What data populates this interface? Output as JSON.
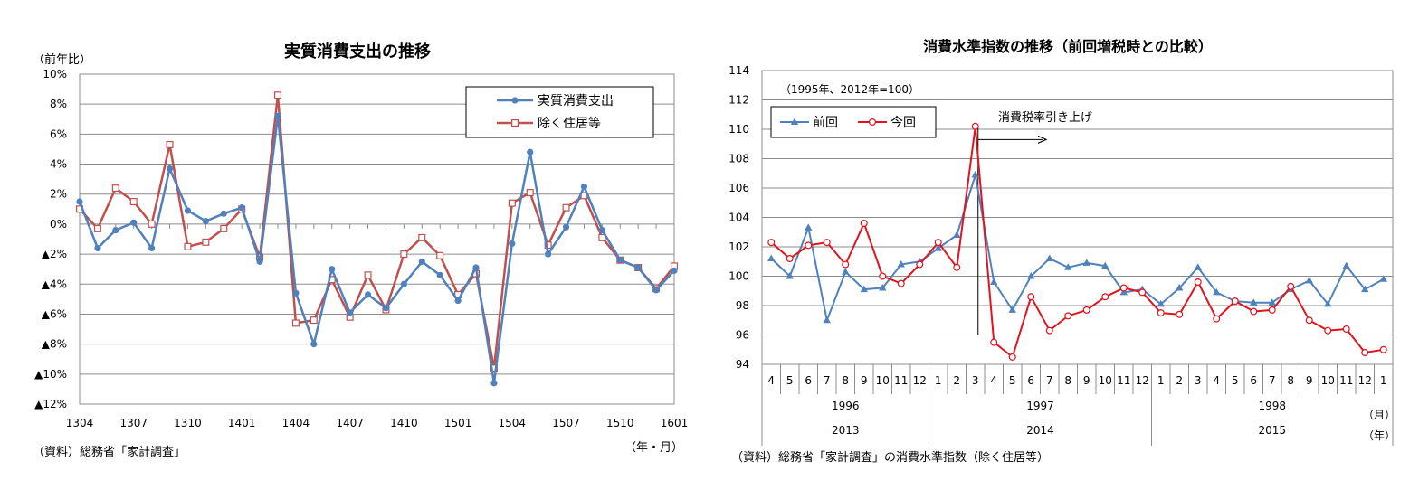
{
  "chart_data": [
    {
      "type": "line",
      "title": "実質消費支出の推移",
      "ylabel": "（前年比）",
      "xlabel": "（年・月）",
      "source": "（資料）総務省「家計調査」",
      "ylim": [
        -12,
        10
      ],
      "y_ticks": [
        10,
        8,
        6,
        4,
        2,
        0,
        -2,
        -4,
        -6,
        -8,
        -10,
        -12
      ],
      "y_tick_labels": [
        "10%",
        "8%",
        "6%",
        "4%",
        "2%",
        "0%",
        "▲2%",
        "▲4%",
        "▲6%",
        "▲8%",
        "▲10%",
        "▲12%"
      ],
      "x_tick_labels": [
        "1304",
        "1307",
        "1310",
        "1401",
        "1404",
        "1407",
        "1410",
        "1501",
        "1504",
        "1507",
        "1510",
        "1601"
      ],
      "grid": "horizontal",
      "legend_position": "top-right",
      "series": [
        {
          "name": "実質消費支出",
          "color": "#4f81bd",
          "marker": "circle-filled",
          "values": [
            1.5,
            -1.6,
            -0.4,
            0.1,
            -1.6,
            3.7,
            0.9,
            0.2,
            0.7,
            1.1,
            -2.5,
            7.2,
            -4.6,
            -8.0,
            -3.0,
            -5.9,
            -4.7,
            -5.6,
            -4.0,
            -2.5,
            -3.4,
            -5.1,
            -2.9,
            -10.6,
            -1.3,
            4.8,
            -2.0,
            -0.2,
            2.5,
            -0.4,
            -2.4,
            -2.9,
            -4.4,
            -3.1
          ]
        },
        {
          "name": "除く住居等",
          "color": "#c0504d",
          "marker": "square-open",
          "values": [
            1.0,
            -0.3,
            2.4,
            1.5,
            0.0,
            5.3,
            -1.5,
            -1.2,
            -0.3,
            1.0,
            -2.2,
            8.6,
            -6.6,
            -6.4,
            -3.7,
            -6.2,
            -3.4,
            -5.7,
            -2.0,
            -0.9,
            -2.1,
            -4.7,
            -3.3,
            -9.6,
            1.4,
            2.1,
            -1.4,
            1.1,
            1.9,
            -0.9,
            -2.4,
            -2.9,
            -4.3,
            -2.8
          ]
        }
      ]
    },
    {
      "type": "line",
      "title": "消費水準指数の推移（前回増税時との比較）",
      "note": "（1995年、2012年=100）",
      "source": "（資料）総務省「家計調査」の消費水準指数（除く住居等）",
      "ylim": [
        94,
        114
      ],
      "y_ticks": [
        114,
        112,
        110,
        108,
        106,
        104,
        102,
        100,
        98,
        96,
        94
      ],
      "y_tick_labels": [
        "114",
        "112",
        "110",
        "108",
        "106",
        "104",
        "102",
        "100",
        "98",
        "96",
        "94"
      ],
      "months": [
        "4",
        "5",
        "6",
        "7",
        "8",
        "9",
        "10",
        "11",
        "12",
        "1",
        "2",
        "3",
        "4",
        "5",
        "6",
        "7",
        "8",
        "9",
        "10",
        "11",
        "12",
        "1",
        "2",
        "3",
        "4",
        "5",
        "6",
        "7",
        "8",
        "9",
        "10",
        "11",
        "12",
        "1"
      ],
      "years_prev": [
        "1996",
        "1997",
        "1998"
      ],
      "years_curr": [
        "2013",
        "2014",
        "2015"
      ],
      "month_unit": "（月）",
      "year_unit": "（年）",
      "annotation": "消費税率引き上げ",
      "grid": "horizontal",
      "legend_position": "top-left",
      "series": [
        {
          "name": "前回",
          "color": "#4f81bd",
          "marker": "triangle-filled",
          "values": [
            101.2,
            100.0,
            103.3,
            97.0,
            100.3,
            99.1,
            99.2,
            100.8,
            101.0,
            101.9,
            102.8,
            106.9,
            99.6,
            97.7,
            100.0,
            101.2,
            100.6,
            100.9,
            100.7,
            98.9,
            99.1,
            98.1,
            99.2,
            100.6,
            98.9,
            98.3,
            98.2,
            98.2,
            99.1,
            99.7,
            98.1,
            100.7,
            99.1,
            99.8
          ]
        },
        {
          "name": "今回",
          "color": "#e0141e",
          "marker": "circle-open",
          "values": [
            102.3,
            101.2,
            102.1,
            102.3,
            100.8,
            103.6,
            100.0,
            99.5,
            100.8,
            102.3,
            100.6,
            110.2,
            95.5,
            94.5,
            98.6,
            96.3,
            97.3,
            97.7,
            98.6,
            99.2,
            98.9,
            97.5,
            97.4,
            99.6,
            97.1,
            98.3,
            97.6,
            97.7,
            99.3,
            97.0,
            96.3,
            96.4,
            94.8,
            95.0
          ]
        }
      ]
    }
  ]
}
